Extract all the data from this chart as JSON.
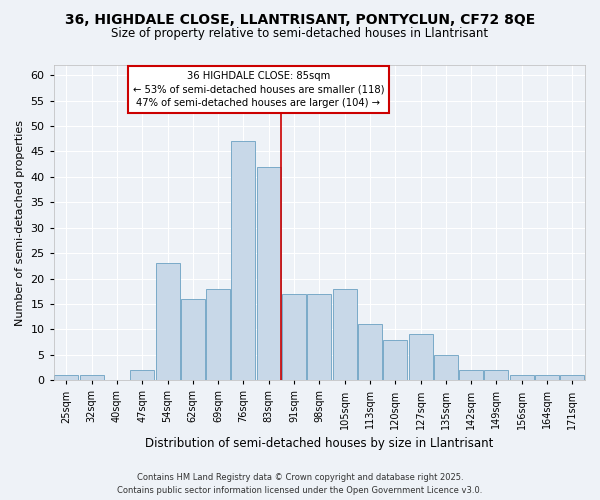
{
  "title1": "36, HIGHDALE CLOSE, LLANTRISANT, PONTYCLUN, CF72 8QE",
  "title2": "Size of property relative to semi-detached houses in Llantrisant",
  "xlabel": "Distribution of semi-detached houses by size in Llantrisant",
  "ylabel": "Number of semi-detached properties",
  "categories": [
    "25sqm",
    "32sqm",
    "40sqm",
    "47sqm",
    "54sqm",
    "62sqm",
    "69sqm",
    "76sqm",
    "83sqm",
    "91sqm",
    "98sqm",
    "105sqm",
    "113sqm",
    "120sqm",
    "127sqm",
    "135sqm",
    "142sqm",
    "149sqm",
    "156sqm",
    "164sqm",
    "171sqm"
  ],
  "values": [
    1,
    1,
    0,
    2,
    23,
    16,
    18,
    47,
    42,
    17,
    17,
    18,
    11,
    8,
    9,
    5,
    2,
    2,
    1,
    1,
    1
  ],
  "bar_color": "#c8d8e8",
  "bar_edge_color": "#7aaac8",
  "vline_index": 8,
  "vline_color": "#cc0000",
  "annotation_title": "36 HIGHDALE CLOSE: 85sqm",
  "annotation_line2": "← 53% of semi-detached houses are smaller (118)",
  "annotation_line3": "47% of semi-detached houses are larger (104) →",
  "ylim": [
    0,
    62
  ],
  "yticks": [
    0,
    5,
    10,
    15,
    20,
    25,
    30,
    35,
    40,
    45,
    50,
    55,
    60
  ],
  "footer1": "Contains HM Land Registry data © Crown copyright and database right 2025.",
  "footer2": "Contains public sector information licensed under the Open Government Licence v3.0.",
  "bg_color": "#eef2f7",
  "grid_color": "#ffffff",
  "annotation_box_color": "#ffffff",
  "annotation_box_edge": "#cc0000"
}
